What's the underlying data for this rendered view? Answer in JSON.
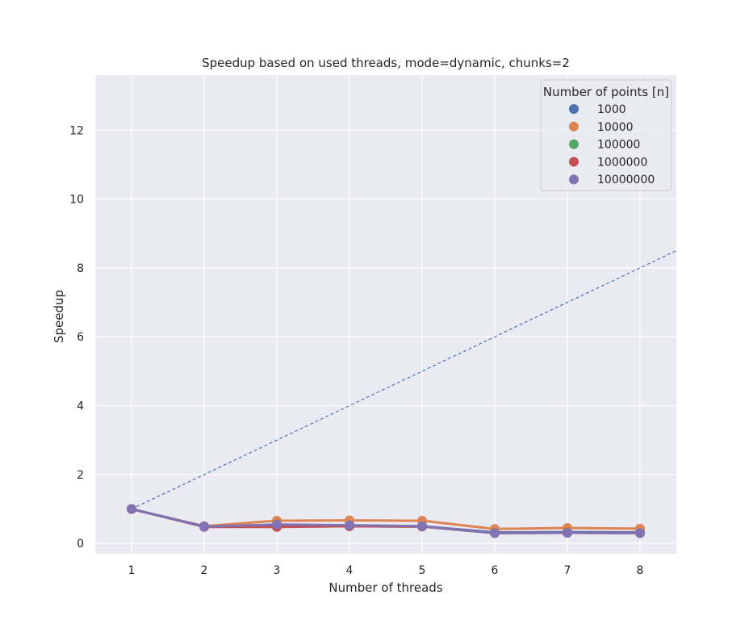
{
  "chart_data": {
    "type": "line",
    "title": "Speedup based on used threads, mode=dynamic, chunks=2",
    "xlabel": "Number of threads",
    "ylabel": "Speedup",
    "categories": [
      1,
      2,
      3,
      4,
      5,
      6,
      7,
      8
    ],
    "xlim": [
      0.5,
      8.5
    ],
    "ylim": [
      -0.3,
      13.6
    ],
    "yticks": [
      0,
      2,
      4,
      6,
      8,
      10,
      12
    ],
    "grid": true,
    "legend": {
      "title": "Number of points [n]",
      "placement": "top-right"
    },
    "reference_line": {
      "style": "dashed",
      "color": "#4c72b0",
      "x": [
        1,
        8.5
      ],
      "y": [
        1,
        8.5
      ]
    },
    "series": [
      {
        "name": "1000",
        "color": "#4c72b0",
        "values": [
          1.0,
          0.5,
          0.52,
          0.52,
          0.5,
          0.32,
          0.33,
          0.32
        ]
      },
      {
        "name": "10000",
        "color": "#dd8452",
        "values": [
          1.0,
          0.5,
          0.66,
          0.67,
          0.66,
          0.42,
          0.45,
          0.43
        ]
      },
      {
        "name": "100000",
        "color": "#55a868",
        "values": [
          1.0,
          0.49,
          0.5,
          0.5,
          0.49,
          0.3,
          0.31,
          0.3
        ]
      },
      {
        "name": "1000000",
        "color": "#c44e52",
        "values": [
          1.0,
          0.48,
          0.48,
          0.5,
          0.49,
          0.3,
          0.31,
          0.3
        ]
      },
      {
        "name": "10000000",
        "color": "#8172b3",
        "values": [
          1.0,
          0.49,
          0.55,
          0.53,
          0.5,
          0.3,
          0.31,
          0.3
        ]
      }
    ]
  }
}
